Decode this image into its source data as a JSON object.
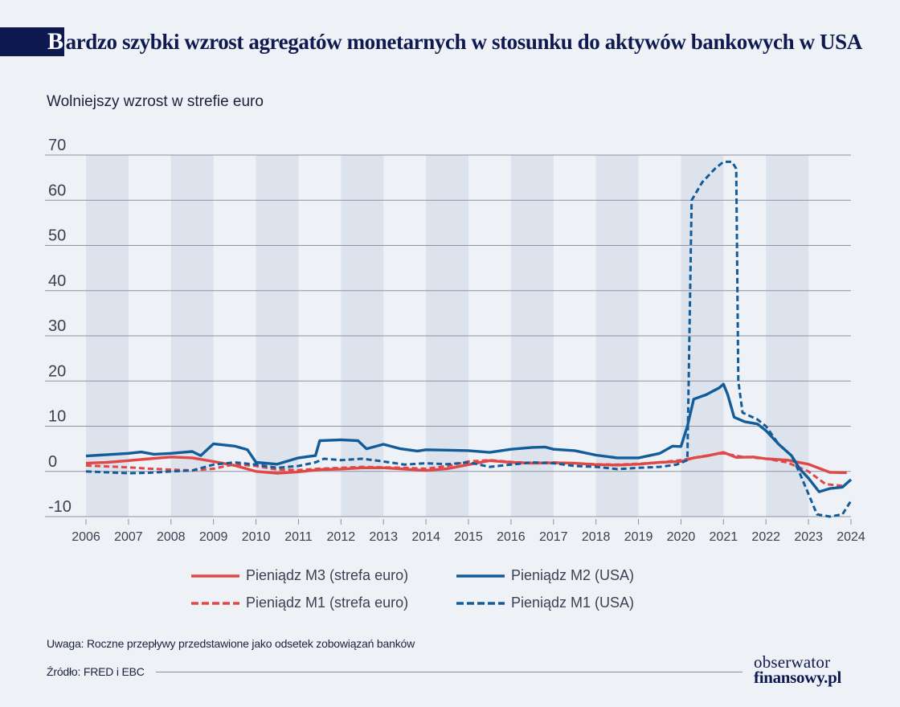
{
  "title": {
    "initial": "B",
    "rest": "ardzo szybki wzrost agregatów monetarnych w stosunku do aktywów bankowych w USA"
  },
  "subtitle": "Wolniejszy wzrost w strefie euro",
  "note": "Uwaga: Roczne przepływy przedstawione jako odsetek zobowiązań banków",
  "source": "Źródło: FRED i EBC",
  "logo": {
    "line1": "obserwator",
    "line2": "finansowy.pl"
  },
  "colors": {
    "red": "#e04848",
    "blue": "#135c9a",
    "grid": "#8f93a3",
    "band": "#dde3ec",
    "axis_text": "#3a3f52"
  },
  "chart_data": {
    "type": "line",
    "title": "Bardzo szybki wzrost agregatów monetarnych w stosunku do aktywów bankowych w USA",
    "subtitle": "Wolniejszy wzrost w strefie euro",
    "xlim": [
      2006,
      2024
    ],
    "ylim": [
      -10,
      70
    ],
    "x_ticks": [
      "2006",
      "2007",
      "2008",
      "2009",
      "2010",
      "2011",
      "2012",
      "2013",
      "2014",
      "2015",
      "2016",
      "2017",
      "2018",
      "2019",
      "2020",
      "2021",
      "2022",
      "2023",
      "2024"
    ],
    "y_ticks": [
      "70",
      "60",
      "50",
      "40",
      "30",
      "20",
      "10",
      "0",
      "-10"
    ],
    "y_tick_values": [
      70,
      60,
      50,
      40,
      30,
      20,
      10,
      0,
      -10
    ],
    "shaded_years": [
      2006,
      2008,
      2010,
      2012,
      2014,
      2016,
      2018,
      2020,
      2022
    ],
    "grid": true,
    "legend_position": "bottom",
    "series": [
      {
        "name": "Pieniądz M3 (strefa euro)",
        "color": "#e04848",
        "style": "solid",
        "points": [
          [
            2006,
            1.8
          ],
          [
            2006.5,
            2.0
          ],
          [
            2007,
            2.4
          ],
          [
            2007.5,
            2.8
          ],
          [
            2008,
            3.2
          ],
          [
            2008.5,
            3.0
          ],
          [
            2009,
            2.2
          ],
          [
            2009.5,
            1.3
          ],
          [
            2010,
            0.0
          ],
          [
            2010.5,
            -0.4
          ],
          [
            2011,
            -0.1
          ],
          [
            2011.5,
            0.4
          ],
          [
            2012,
            0.5
          ],
          [
            2012.5,
            0.8
          ],
          [
            2013,
            0.8
          ],
          [
            2013.5,
            0.5
          ],
          [
            2014,
            0.2
          ],
          [
            2014.5,
            0.6
          ],
          [
            2015,
            1.5
          ],
          [
            2015.5,
            2.4
          ],
          [
            2016,
            2.0
          ],
          [
            2016.5,
            1.8
          ],
          [
            2017,
            1.9
          ],
          [
            2017.5,
            1.8
          ],
          [
            2018,
            1.5
          ],
          [
            2018.5,
            1.4
          ],
          [
            2019,
            1.6
          ],
          [
            2019.5,
            2.0
          ],
          [
            2020,
            2.2
          ],
          [
            2020.3,
            3.0
          ],
          [
            2020.6,
            3.4
          ],
          [
            2021,
            4.2
          ],
          [
            2021.3,
            3.1
          ],
          [
            2021.7,
            3.2
          ],
          [
            2022,
            2.8
          ],
          [
            2022.5,
            2.5
          ],
          [
            2023,
            1.6
          ],
          [
            2023.5,
            -0.2
          ],
          [
            2023.9,
            -0.3
          ]
        ]
      },
      {
        "name": "Pieniądz M1 (strefa euro)",
        "color": "#e04848",
        "style": "dashed",
        "points": [
          [
            2006,
            1.3
          ],
          [
            2006.5,
            1.1
          ],
          [
            2007,
            0.9
          ],
          [
            2007.5,
            0.6
          ],
          [
            2008,
            0.4
          ],
          [
            2008.5,
            0.2
          ],
          [
            2009,
            0.6
          ],
          [
            2009.5,
            1.6
          ],
          [
            2010,
            1.2
          ],
          [
            2010.5,
            0.4
          ],
          [
            2011,
            0.3
          ],
          [
            2011.5,
            0.6
          ],
          [
            2012,
            0.8
          ],
          [
            2012.5,
            1.0
          ],
          [
            2013,
            0.9
          ],
          [
            2013.5,
            0.8
          ],
          [
            2014,
            0.6
          ],
          [
            2014.5,
            1.2
          ],
          [
            2015,
            2.2
          ],
          [
            2015.5,
            2.5
          ],
          [
            2016,
            2.1
          ],
          [
            2016.5,
            1.9
          ],
          [
            2017,
            2.0
          ],
          [
            2017.5,
            1.8
          ],
          [
            2018,
            1.6
          ],
          [
            2018.5,
            1.5
          ],
          [
            2019,
            1.7
          ],
          [
            2019.5,
            2.0
          ],
          [
            2020,
            2.5
          ],
          [
            2020.4,
            3.2
          ],
          [
            2020.8,
            3.8
          ],
          [
            2021,
            4.0
          ],
          [
            2021.4,
            3.3
          ],
          [
            2022,
            2.8
          ],
          [
            2022.5,
            2.0
          ],
          [
            2023,
            0.0
          ],
          [
            2023.4,
            -2.8
          ],
          [
            2023.8,
            -3.2
          ]
        ]
      },
      {
        "name": "Pieniądz M2 (USA)",
        "color": "#135c9a",
        "style": "solid",
        "points": [
          [
            2006,
            3.4
          ],
          [
            2006.5,
            3.7
          ],
          [
            2007,
            4.0
          ],
          [
            2007.3,
            4.3
          ],
          [
            2007.6,
            3.8
          ],
          [
            2008,
            4.0
          ],
          [
            2008.5,
            4.4
          ],
          [
            2008.7,
            3.5
          ],
          [
            2009,
            6.1
          ],
          [
            2009.5,
            5.6
          ],
          [
            2009.8,
            4.8
          ],
          [
            2010,
            2.0
          ],
          [
            2010.5,
            1.6
          ],
          [
            2011,
            3.0
          ],
          [
            2011.4,
            3.5
          ],
          [
            2011.5,
            6.8
          ],
          [
            2012,
            7.0
          ],
          [
            2012.4,
            6.8
          ],
          [
            2012.6,
            5.0
          ],
          [
            2013,
            6.0
          ],
          [
            2013.4,
            5.0
          ],
          [
            2013.8,
            4.5
          ],
          [
            2014,
            4.8
          ],
          [
            2014.5,
            4.7
          ],
          [
            2015,
            4.6
          ],
          [
            2015.5,
            4.2
          ],
          [
            2016,
            4.9
          ],
          [
            2016.5,
            5.3
          ],
          [
            2016.8,
            5.4
          ],
          [
            2017,
            4.9
          ],
          [
            2017.5,
            4.6
          ],
          [
            2018,
            3.6
          ],
          [
            2018.5,
            3.0
          ],
          [
            2019,
            3.0
          ],
          [
            2019.5,
            4.0
          ],
          [
            2019.8,
            5.6
          ],
          [
            2020,
            5.5
          ],
          [
            2020.15,
            10.0
          ],
          [
            2020.3,
            16.0
          ],
          [
            2020.6,
            17.0
          ],
          [
            2020.9,
            18.5
          ],
          [
            2021,
            19.3
          ],
          [
            2021.1,
            17.0
          ],
          [
            2021.25,
            12.0
          ],
          [
            2021.5,
            11.0
          ],
          [
            2021.8,
            10.5
          ],
          [
            2022,
            9.0
          ],
          [
            2022.3,
            6.0
          ],
          [
            2022.6,
            3.5
          ],
          [
            2022.8,
            0.5
          ],
          [
            2023,
            -1.5
          ],
          [
            2023.25,
            -4.5
          ],
          [
            2023.5,
            -3.8
          ],
          [
            2023.8,
            -3.5
          ],
          [
            2024,
            -1.8
          ]
        ]
      },
      {
        "name": "Pieniądz M1 (USA)",
        "color": "#135c9a",
        "style": "dashed",
        "points": [
          [
            2006,
            0.0
          ],
          [
            2006.5,
            -0.2
          ],
          [
            2007,
            -0.4
          ],
          [
            2007.5,
            -0.3
          ],
          [
            2008,
            0.0
          ],
          [
            2008.5,
            0.2
          ],
          [
            2009,
            1.5
          ],
          [
            2009.5,
            2.0
          ],
          [
            2010,
            1.5
          ],
          [
            2010.5,
            0.8
          ],
          [
            2011,
            1.2
          ],
          [
            2011.4,
            2.0
          ],
          [
            2011.6,
            2.8
          ],
          [
            2012,
            2.5
          ],
          [
            2012.5,
            2.8
          ],
          [
            2013,
            2.2
          ],
          [
            2013.5,
            1.5
          ],
          [
            2014,
            1.8
          ],
          [
            2014.5,
            1.6
          ],
          [
            2015,
            2.0
          ],
          [
            2015.5,
            1.0
          ],
          [
            2016,
            1.5
          ],
          [
            2016.5,
            2.0
          ],
          [
            2017,
            1.8
          ],
          [
            2017.5,
            1.2
          ],
          [
            2018,
            1.0
          ],
          [
            2018.5,
            0.5
          ],
          [
            2019,
            0.8
          ],
          [
            2019.5,
            1.0
          ],
          [
            2019.9,
            1.5
          ],
          [
            2020.15,
            2.5
          ],
          [
            2020.25,
            60.0
          ],
          [
            2020.5,
            64.0
          ],
          [
            2020.8,
            67.0
          ],
          [
            2021,
            68.5
          ],
          [
            2021.2,
            68.5
          ],
          [
            2021.3,
            67.0
          ],
          [
            2021.35,
            20.0
          ],
          [
            2021.45,
            13.0
          ],
          [
            2021.8,
            11.5
          ],
          [
            2022,
            10.0
          ],
          [
            2022.3,
            6.0
          ],
          [
            2022.6,
            3.5
          ],
          [
            2022.8,
            -0.5
          ],
          [
            2023,
            -5.0
          ],
          [
            2023.2,
            -9.5
          ],
          [
            2023.5,
            -10.0
          ],
          [
            2023.8,
            -9.5
          ],
          [
            2024,
            -6.5
          ]
        ]
      }
    ]
  }
}
